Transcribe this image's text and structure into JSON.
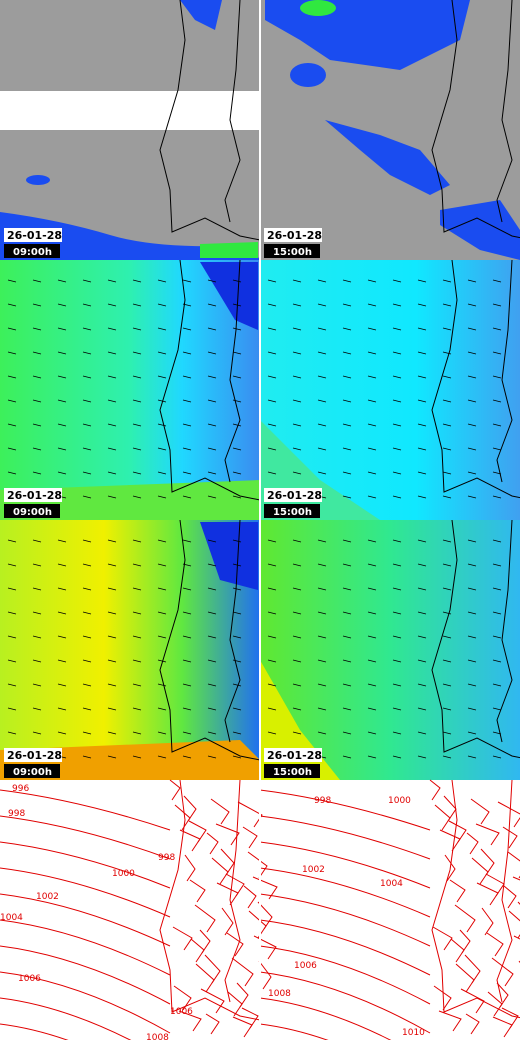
{
  "panels": [
    {
      "date": "26-01-28",
      "time": "09:00h"
    },
    {
      "date": "26-01-28",
      "time": "15:00h"
    },
    {
      "date": "26-01-28",
      "time": "09:00h"
    },
    {
      "date": "26-01-28",
      "time": "15:00h"
    },
    {
      "date": "26-01-28",
      "time": "09:00h"
    },
    {
      "date": "26-01-28",
      "time": "15:00h"
    }
  ],
  "isobars": [
    {
      "labels": [
        996,
        998,
        998,
        1000,
        1002,
        1004,
        1006,
        1006,
        1008
      ]
    },
    {
      "labels": [
        998,
        1000,
        1002,
        1004,
        1006,
        1008,
        1010
      ]
    }
  ]
}
